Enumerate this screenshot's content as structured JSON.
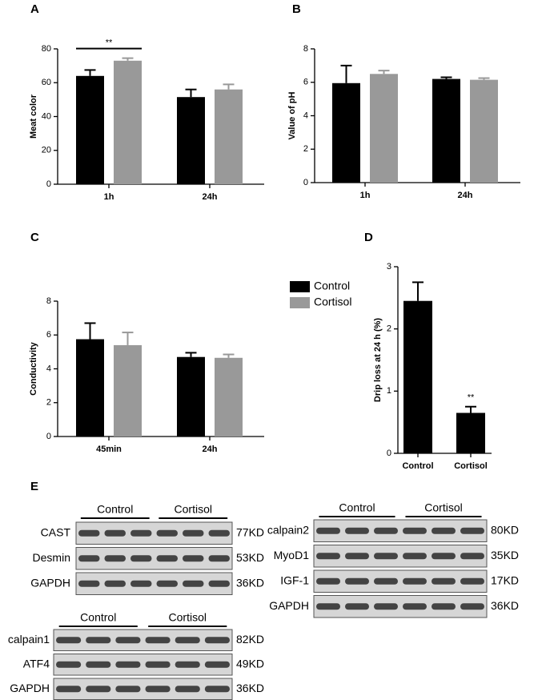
{
  "chart_data": [
    {
      "type": "bar",
      "label": "A",
      "y_label": "Meat color",
      "categories": [
        "1h",
        "24h"
      ],
      "series": [
        {
          "name": "Control",
          "color": "#000000",
          "values": [
            64,
            51.5
          ],
          "errors": [
            3.5,
            4.5
          ]
        },
        {
          "name": "Cortisol",
          "color": "#999999",
          "values": [
            73,
            56
          ],
          "errors": [
            1.5,
            3
          ]
        }
      ],
      "ylim": [
        0,
        80
      ],
      "yticks": [
        0,
        20,
        40,
        60,
        80
      ],
      "annotations": [
        {
          "text": "**",
          "category": "1h"
        }
      ]
    },
    {
      "type": "bar",
      "label": "B",
      "y_label": "Value of  pH",
      "categories": [
        "1h",
        "24h"
      ],
      "series": [
        {
          "name": "Control",
          "color": "#000000",
          "values": [
            5.95,
            6.2
          ],
          "errors": [
            1.05,
            0.1
          ]
        },
        {
          "name": "Cortisol",
          "color": "#999999",
          "values": [
            6.5,
            6.15
          ],
          "errors": [
            0.2,
            0.1
          ]
        }
      ],
      "ylim": [
        0,
        8
      ],
      "yticks": [
        0,
        2,
        4,
        6,
        8
      ]
    },
    {
      "type": "bar",
      "label": "C",
      "y_label": "Conductivity",
      "categories": [
        "45min",
        "24h"
      ],
      "series": [
        {
          "name": "Control",
          "color": "#000000",
          "values": [
            5.75,
            4.7
          ],
          "errors": [
            0.95,
            0.25
          ]
        },
        {
          "name": "Cortisol",
          "color": "#999999",
          "values": [
            5.4,
            4.65
          ],
          "errors": [
            0.75,
            0.2
          ]
        }
      ],
      "ylim": [
        0,
        8
      ],
      "yticks": [
        0,
        2,
        4,
        6,
        8
      ],
      "legend": "right"
    },
    {
      "type": "bar",
      "label": "D",
      "y_label": "Drip loss at 24 h (%)",
      "categories": [
        "Control",
        "Cortisol"
      ],
      "series": [
        {
          "color": "#000000",
          "values": [
            2.45,
            0.65
          ],
          "errors": [
            0.3,
            0.1
          ]
        }
      ],
      "ylim": [
        0,
        3
      ],
      "yticks": [
        0,
        1,
        2,
        3
      ],
      "annotations": [
        {
          "text": "**",
          "category": "Cortisol"
        }
      ]
    }
  ],
  "blot_panel": {
    "label": "E",
    "blots": [
      {
        "groups": [
          "Control",
          "Cortisol"
        ],
        "rows": [
          {
            "label": "CAST",
            "size": "77KD"
          },
          {
            "label": "Desmin",
            "size": "53KD"
          },
          {
            "label": "GAPDH",
            "size": "36KD"
          }
        ]
      },
      {
        "groups": [
          "Control",
          "Cortisol"
        ],
        "rows": [
          {
            "label": "calpain1",
            "size": "82KD"
          },
          {
            "label": "ATF4",
            "size": "49KD"
          },
          {
            "label": "GAPDH",
            "size": "36KD"
          }
        ]
      },
      {
        "groups": [
          "Control",
          "Cortisol"
        ],
        "rows": [
          {
            "label": "calpain2",
            "size": "80KD"
          },
          {
            "label": "MyoD1",
            "size": "35KD"
          },
          {
            "label": "IGF-1",
            "size": "17KD"
          },
          {
            "label": "GAPDH",
            "size": "36KD"
          }
        ]
      }
    ]
  }
}
